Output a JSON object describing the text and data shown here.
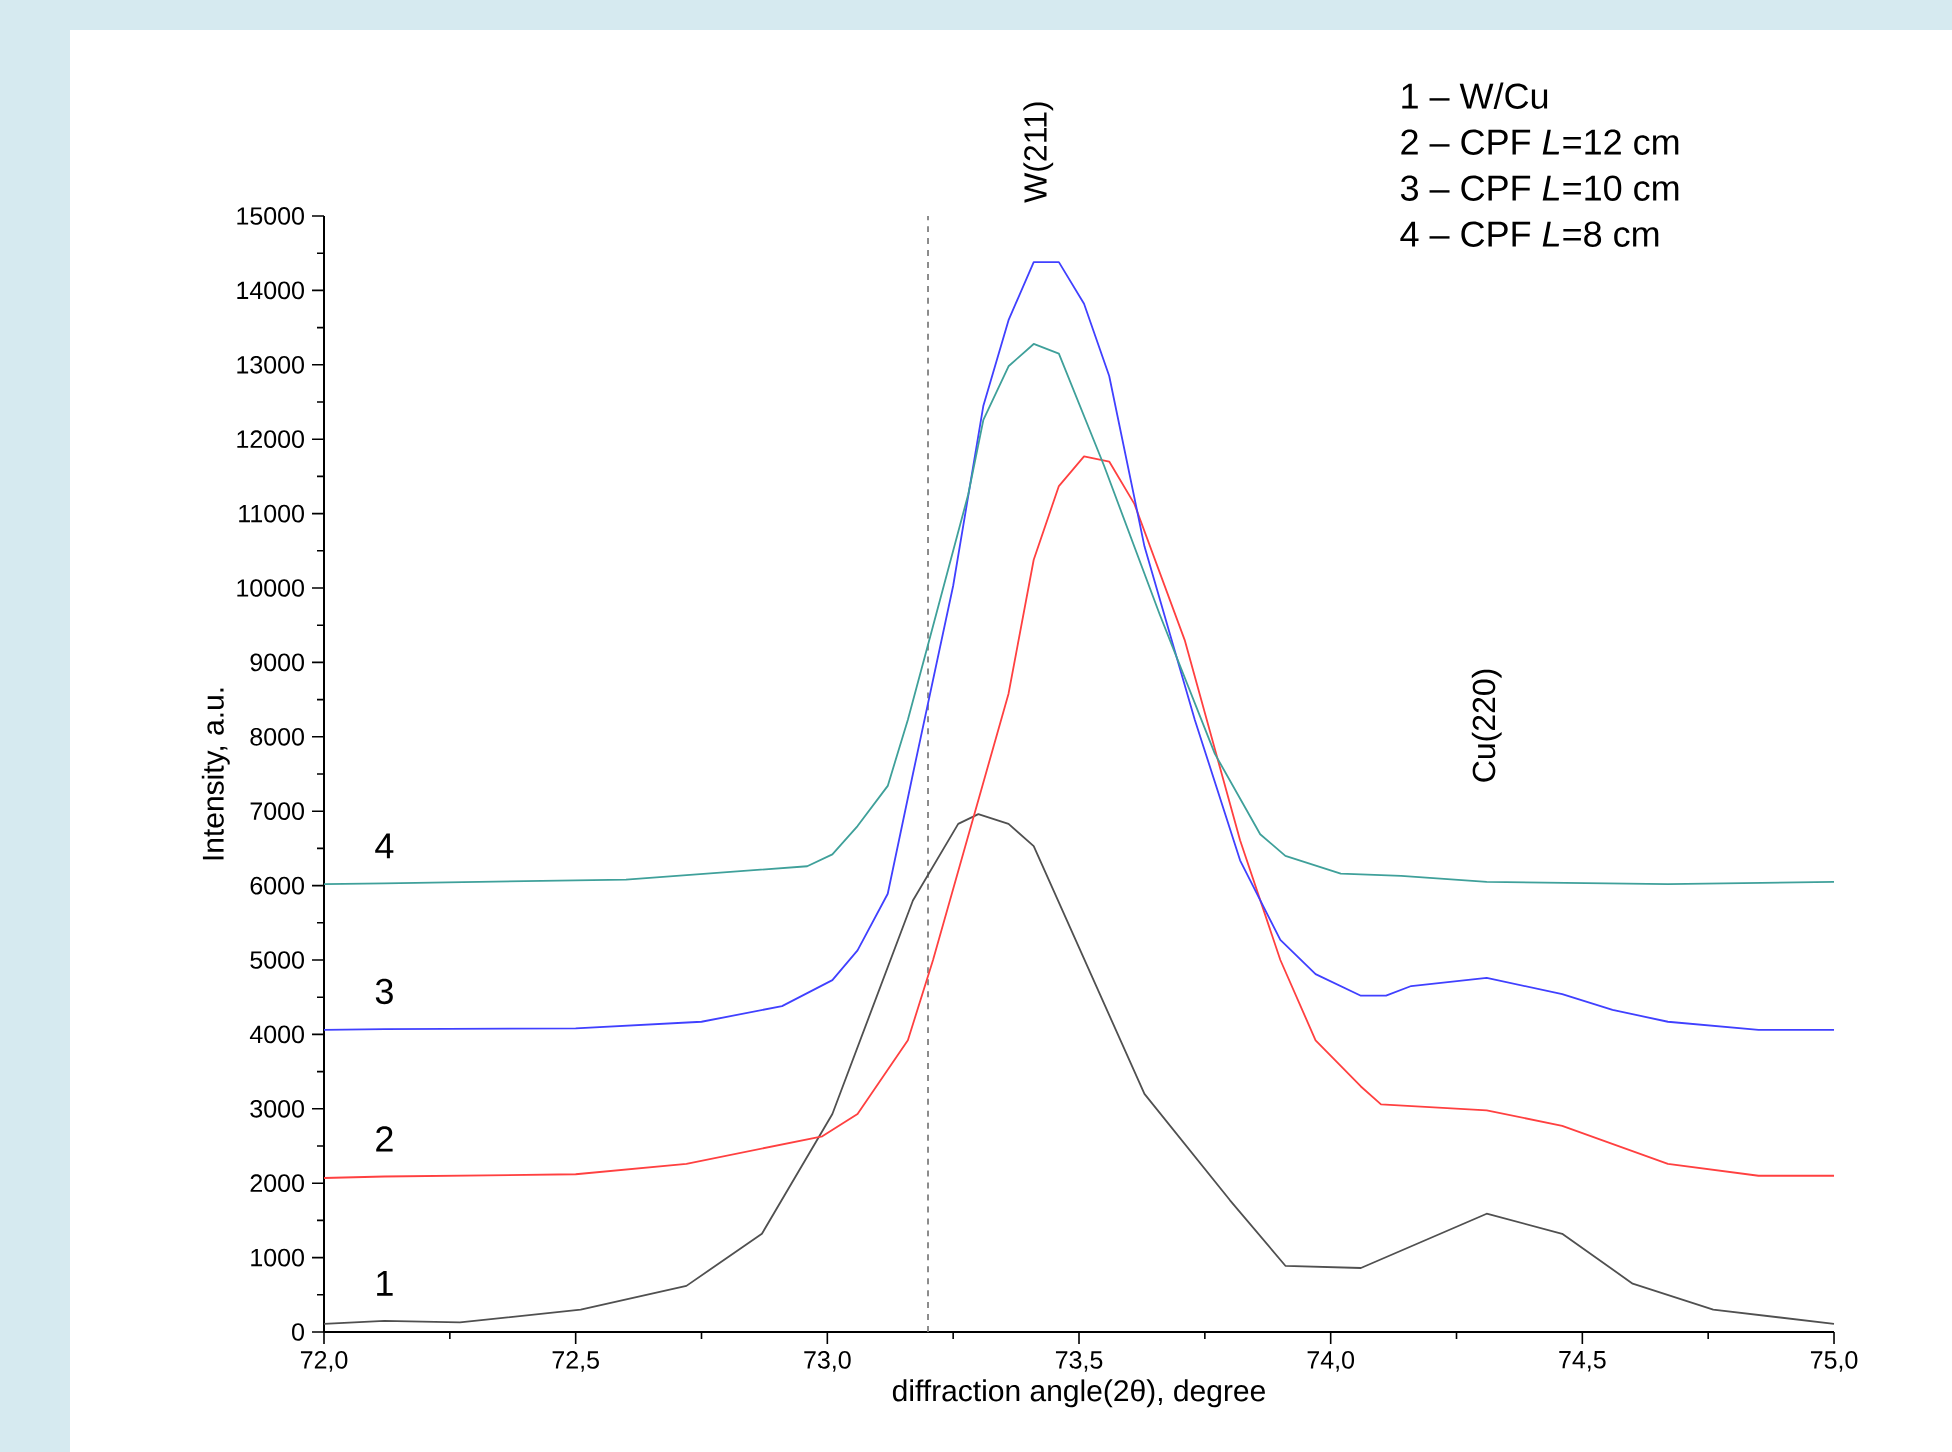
{
  "chart_data": {
    "type": "line",
    "xlabel": "diffraction angle(2θ), degree",
    "ylabel": "Intensity, a.u.",
    "xlim": [
      72.0,
      75.0
    ],
    "xticks": [
      {
        "value": 72.0,
        "label": "72,0"
      },
      {
        "value": 72.5,
        "label": "72,5"
      },
      {
        "value": 73.0,
        "label": "73,0"
      },
      {
        "value": 73.5,
        "label": "73,5"
      },
      {
        "value": 74.0,
        "label": "74,0"
      },
      {
        "value": 74.5,
        "label": "74,5"
      },
      {
        "value": 75.0,
        "label": "75,0"
      }
    ],
    "ylim": [
      0,
      15000
    ],
    "yticks": [
      0,
      1000,
      2000,
      3000,
      4000,
      5000,
      6000,
      7000,
      8000,
      9000,
      10000,
      11000,
      12000,
      13000,
      14000,
      15000
    ],
    "series": [
      {
        "name": "1",
        "color": "#505050",
        "x": [
          72.0,
          72.12,
          72.27,
          72.51,
          72.72,
          72.87,
          73.01,
          73.17,
          73.26,
          73.3,
          73.36,
          73.41,
          73.63,
          73.8,
          73.91,
          74.06,
          74.31,
          74.46,
          74.6,
          74.76,
          75.0
        ],
        "values": [
          110,
          150,
          130,
          300,
          620,
          1320,
          2930,
          5800,
          6830,
          6960,
          6830,
          6530,
          3200,
          1770,
          890,
          860,
          1590,
          1320,
          650,
          300,
          110
        ]
      },
      {
        "name": "2",
        "color": "#ff4040",
        "x": [
          72.0,
          72.12,
          72.5,
          72.72,
          72.99,
          73.06,
          73.16,
          73.21,
          73.36,
          73.41,
          73.46,
          73.51,
          73.56,
          73.61,
          73.71,
          73.82,
          73.9,
          73.97,
          74.06,
          74.1,
          74.31,
          74.46,
          74.67,
          74.85,
          75.0
        ],
        "values": [
          2070,
          2090,
          2120,
          2260,
          2630,
          2930,
          3920,
          5000,
          8580,
          10380,
          11370,
          11770,
          11700,
          11130,
          9300,
          6610,
          5000,
          3920,
          3300,
          3060,
          2980,
          2770,
          2260,
          2100,
          2100
        ]
      },
      {
        "name": "3",
        "color": "#4040ff",
        "x": [
          72.0,
          72.12,
          72.5,
          72.75,
          72.91,
          73.01,
          73.06,
          73.12,
          73.17,
          73.25,
          73.31,
          73.36,
          73.41,
          73.46,
          73.51,
          73.56,
          73.63,
          73.73,
          73.82,
          73.9,
          73.97,
          74.06,
          74.11,
          74.16,
          74.31,
          74.46,
          74.56,
          74.67,
          74.85,
          75.0
        ],
        "values": [
          4060,
          4070,
          4080,
          4170,
          4380,
          4730,
          5130,
          5890,
          7500,
          10030,
          12450,
          13600,
          14380,
          14380,
          13820,
          12850,
          10560,
          8230,
          6340,
          5270,
          4810,
          4520,
          4520,
          4650,
          4760,
          4540,
          4330,
          4170,
          4060,
          4060
        ]
      },
      {
        "name": "4",
        "color": "#3fa09a",
        "x": [
          72.0,
          72.12,
          72.6,
          72.96,
          73.01,
          73.06,
          73.12,
          73.16,
          73.21,
          73.28,
          73.31,
          73.36,
          73.41,
          73.46,
          73.55,
          73.66,
          73.77,
          73.86,
          73.91,
          74.02,
          74.14,
          74.31,
          74.67,
          75.0
        ],
        "values": [
          6020,
          6030,
          6080,
          6260,
          6420,
          6800,
          7340,
          8230,
          9490,
          11260,
          12260,
          12980,
          13280,
          13150,
          11640,
          9650,
          7770,
          6690,
          6400,
          6160,
          6130,
          6050,
          6020,
          6050
        ]
      }
    ],
    "ref_lines": [
      {
        "axis": "x",
        "value": 73.2,
        "color": "#808080",
        "line_style": "dashed"
      }
    ],
    "annotations": [
      "W(211)",
      "Cu(220)",
      "1 – W/Cu",
      "2 – CPF *L*=12 cm",
      "3 – CPF *L*=10 cm",
      "4 – CPF *L*=8 cm"
    ]
  }
}
